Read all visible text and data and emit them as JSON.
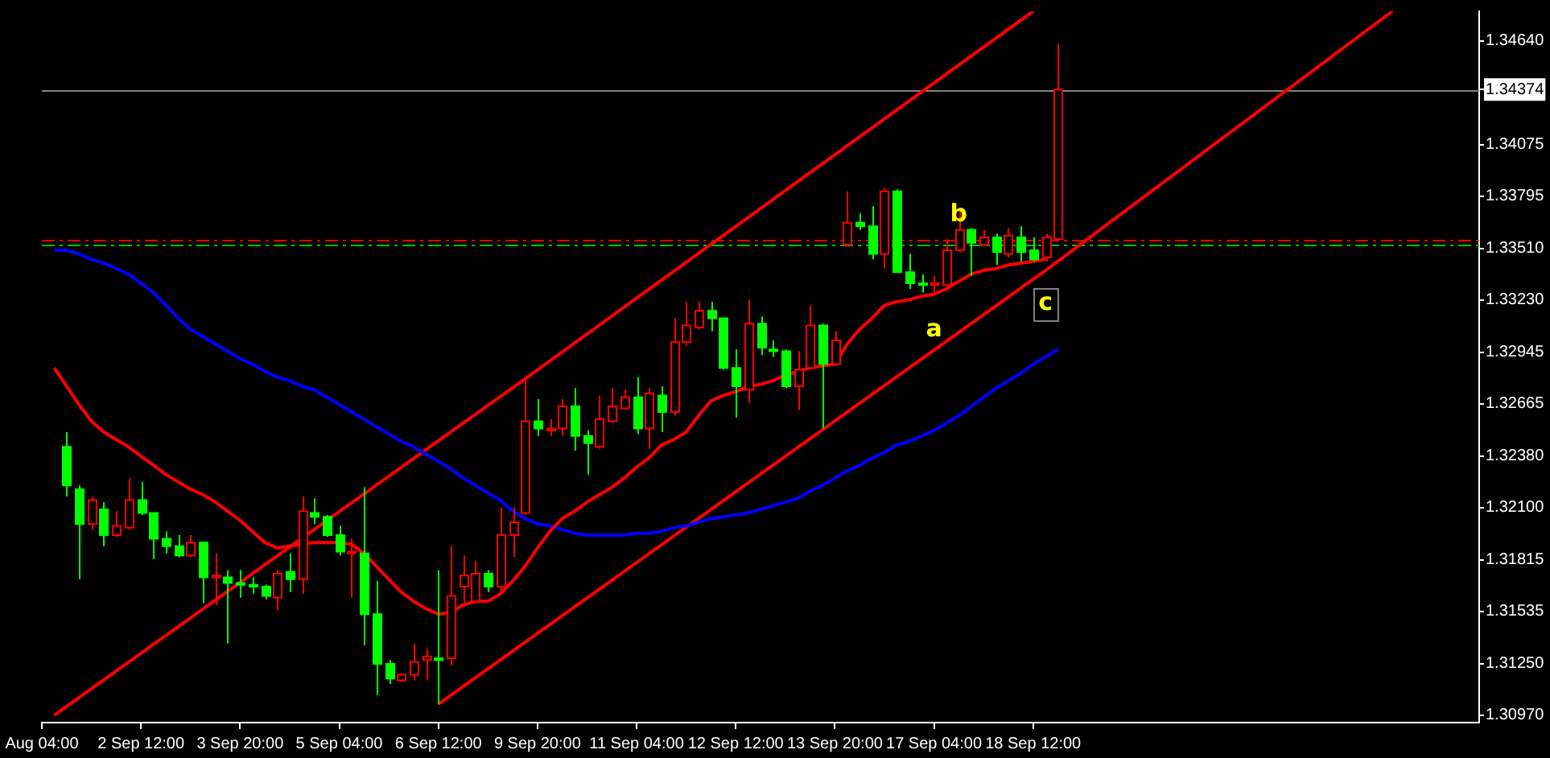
{
  "chart_data": {
    "type": "candlestick",
    "categories": [
      "Aug 04:00",
      null,
      null,
      null,
      null,
      null,
      null,
      null,
      "2 Sep 12:00",
      null,
      null,
      null,
      null,
      null,
      null,
      null,
      "3 Sep 20:00",
      null,
      null,
      null,
      null,
      null,
      null,
      null,
      "5 Sep 04:00",
      null,
      null,
      null,
      null,
      null,
      null,
      null,
      "6 Sep 12:00",
      null,
      null,
      null,
      null,
      null,
      null,
      null,
      "9 Sep 20:00",
      null,
      null,
      null,
      null,
      null,
      null,
      null,
      "11 Sep 04:00",
      null,
      null,
      null,
      null,
      null,
      null,
      null,
      "12 Sep 12:00",
      null,
      null,
      null,
      null,
      null,
      null,
      null,
      "13 Sep 20:00",
      null,
      null,
      null,
      null,
      null,
      null,
      null,
      "17 Sep 04:00",
      null,
      null,
      null,
      null,
      null,
      null,
      null,
      "18 Sep 12:00",
      null,
      null,
      null,
      null,
      null,
      null,
      null,
      null,
      null,
      null,
      null,
      null,
      null,
      null,
      null,
      null,
      null,
      null,
      null,
      null,
      null,
      null,
      null,
      null,
      null,
      null,
      null,
      null,
      null,
      null,
      null,
      null,
      null,
      null,
      null,
      null
    ],
    "ohlc": [
      null,
      null,
      [
        1.3243,
        1.3251,
        1.3216,
        1.3222
      ],
      [
        1.322,
        1.3222,
        1.3171,
        1.3201
      ],
      [
        1.3201,
        1.3216,
        1.3198,
        1.3214
      ],
      [
        1.3209,
        1.3213,
        1.3189,
        1.3195
      ],
      [
        1.3195,
        1.3208,
        1.3194,
        1.32
      ],
      [
        1.3199,
        1.3226,
        1.3198,
        1.3214
      ],
      [
        1.3214,
        1.3224,
        1.3206,
        1.3207
      ],
      [
        1.3207,
        1.3207,
        1.3182,
        1.3193
      ],
      [
        1.3193,
        1.3197,
        1.3185,
        1.3189
      ],
      [
        1.3189,
        1.3195,
        1.3183,
        1.3184
      ],
      [
        1.3184,
        1.3195,
        1.3183,
        1.3191
      ],
      [
        1.3191,
        1.3191,
        1.3158,
        1.3172
      ],
      [
        1.3172,
        1.3185,
        1.3157,
        1.3173
      ],
      [
        1.3172,
        1.3176,
        1.3136,
        1.3169
      ],
      [
        1.3169,
        1.3176,
        1.3161,
        1.3168
      ],
      [
        1.3168,
        1.3172,
        1.3163,
        1.3167
      ],
      [
        1.3167,
        1.3168,
        1.316,
        1.3162
      ],
      [
        1.3161,
        1.3176,
        1.3154,
        1.3174
      ],
      [
        1.3175,
        1.3185,
        1.3164,
        1.3171
      ],
      [
        1.3171,
        1.3216,
        1.3163,
        1.3208
      ],
      [
        1.3207,
        1.3215,
        1.3201,
        1.3205
      ],
      [
        1.3205,
        1.3206,
        1.3194,
        1.3195
      ],
      [
        1.3195,
        1.32,
        1.3184,
        1.3186
      ],
      [
        1.3185,
        1.3193,
        1.3161,
        1.3186
      ],
      [
        1.3185,
        1.3221,
        1.3135,
        1.3152
      ],
      [
        1.3152,
        1.317,
        1.3108,
        1.3125
      ],
      [
        1.3125,
        1.3127,
        1.3114,
        1.3117
      ],
      [
        1.3116,
        1.312,
        1.3115,
        1.3119
      ],
      [
        1.3119,
        1.3136,
        1.3116,
        1.3126
      ],
      [
        1.3127,
        1.3133,
        1.3116,
        1.3129
      ],
      [
        1.3128,
        1.3176,
        1.3103,
        1.3127
      ],
      [
        1.3128,
        1.3189,
        1.3124,
        1.3162
      ],
      [
        1.3167,
        1.3184,
        1.3158,
        1.3173
      ],
      [
        1.3159,
        1.3181,
        1.3158,
        1.3174
      ],
      [
        1.3174,
        1.3176,
        1.3164,
        1.3167
      ],
      [
        1.3167,
        1.321,
        1.3164,
        1.3195
      ],
      [
        1.3195,
        1.321,
        1.3183,
        1.3202
      ],
      [
        1.3207,
        1.328,
        1.3206,
        1.3257
      ],
      [
        1.3257,
        1.3269,
        1.3249,
        1.3253
      ],
      [
        1.3252,
        1.3258,
        1.3249,
        1.3253
      ],
      [
        1.3253,
        1.3269,
        1.3249,
        1.3265
      ],
      [
        1.3265,
        1.3275,
        1.3241,
        1.3249
      ],
      [
        1.3249,
        1.3252,
        1.3228,
        1.3245
      ],
      [
        1.3243,
        1.3271,
        1.3242,
        1.3258
      ],
      [
        1.3257,
        1.3275,
        1.3256,
        1.3265
      ],
      [
        1.3264,
        1.3274,
        1.3263,
        1.327
      ],
      [
        1.327,
        1.3281,
        1.325,
        1.3253
      ],
      [
        1.3253,
        1.3275,
        1.3242,
        1.3272
      ],
      [
        1.3271,
        1.3276,
        1.3251,
        1.3262
      ],
      [
        1.3262,
        1.3313,
        1.326,
        1.33
      ],
      [
        1.33,
        1.3322,
        1.3298,
        1.3309
      ],
      [
        1.3308,
        1.3322,
        1.3307,
        1.3317
      ],
      [
        1.3317,
        1.3322,
        1.3306,
        1.3313
      ],
      [
        1.3313,
        1.3313,
        1.3285,
        1.3286
      ],
      [
        1.3286,
        1.3296,
        1.3259,
        1.3276
      ],
      [
        1.3274,
        1.3323,
        1.3267,
        1.331
      ],
      [
        1.331,
        1.3314,
        1.3293,
        1.3297
      ],
      [
        1.3296,
        1.3301,
        1.3292,
        1.3295
      ],
      [
        1.3295,
        1.3296,
        1.3275,
        1.3276
      ],
      [
        1.3276,
        1.3295,
        1.3263,
        1.3285
      ],
      [
        1.3286,
        1.332,
        1.3285,
        1.3309
      ],
      [
        1.3309,
        1.331,
        1.3253,
        1.3288
      ],
      [
        1.3288,
        1.3306,
        1.3287,
        1.3301
      ],
      [
        1.3353,
        1.3382,
        1.3352,
        1.3365
      ],
      [
        1.3365,
        1.337,
        1.3361,
        1.3363
      ],
      [
        1.3363,
        1.3374,
        1.3345,
        1.3348
      ],
      [
        1.3348,
        1.3384,
        1.334,
        1.3382
      ],
      [
        1.3382,
        1.3383,
        1.3338,
        1.3338
      ],
      [
        1.3338,
        1.3348,
        1.3329,
        1.3332
      ],
      [
        1.3332,
        1.3337,
        1.3327,
        1.3331
      ],
      [
        1.3331,
        1.3336,
        1.3327,
        1.3332
      ],
      [
        1.3331,
        1.3356,
        1.3331,
        1.335
      ],
      [
        1.335,
        1.3372,
        1.3349,
        1.3361
      ],
      [
        1.3361,
        1.3362,
        1.3336,
        1.3354
      ],
      [
        1.3353,
        1.3361,
        1.3352,
        1.3357
      ],
      [
        1.3357,
        1.3359,
        1.3342,
        1.3349
      ],
      [
        1.3348,
        1.3362,
        1.3346,
        1.3358
      ],
      [
        1.3357,
        1.3363,
        1.3344,
        1.3349
      ],
      [
        1.335,
        1.3357,
        1.3344,
        1.3345
      ],
      [
        1.3346,
        1.3359,
        1.3344,
        1.3357
      ],
      [
        1.3356,
        1.3462,
        1.3356,
        1.34374
      ],
      null,
      null,
      null,
      null,
      null,
      null,
      null,
      null,
      null,
      null,
      null,
      null,
      null,
      null,
      null,
      null,
      null,
      null,
      null,
      null,
      null,
      null,
      null,
      null,
      null,
      null,
      null,
      null,
      null,
      null,
      null,
      null,
      null,
      null
    ],
    "colors": [
      null,
      null,
      "#00ff00",
      "#00ff00",
      "#ff0000",
      "#00ff00",
      "#ff0000",
      "#ff0000",
      "#00ff00",
      "#00ff00",
      "#00ff00",
      "#00ff00",
      "#ff0000",
      "#00ff00",
      "#ff0000",
      "#00ff00",
      "#00ff00",
      "#00ff00",
      "#00ff00",
      "#ff0000",
      "#00ff00",
      "#ff0000",
      "#00ff00",
      "#00ff00",
      "#00ff00",
      "#ff0000",
      "#00ff00",
      "#00ff00",
      "#00ff00",
      "#ff0000",
      "#ff0000",
      "#ff0000",
      "#00ff00",
      "#ff0000",
      "#ff0000",
      "#ff0000",
      "#00ff00",
      "#ff0000",
      "#ff0000",
      "#ff0000",
      "#00ff00",
      "#ff0000",
      "#ff0000",
      "#00ff00",
      "#00ff00",
      "#ff0000",
      "#ff0000",
      "#ff0000",
      "#00ff00",
      "#ff0000",
      "#00ff00",
      "#ff0000",
      "#ff0000",
      "#ff0000",
      "#00ff00",
      "#00ff00",
      "#00ff00",
      "#ff0000",
      "#00ff00",
      "#00ff00",
      "#00ff00",
      "#ff0000",
      "#ff0000",
      "#00ff00",
      "#ff0000",
      "#ff0000",
      "#00ff00",
      "#00ff00",
      "#ff0000",
      "#00ff00",
      "#00ff00",
      "#00ff00",
      "#ff0000",
      "#ff0000",
      "#ff0000",
      "#00ff00",
      "#ff0000",
      "#00ff00",
      "#ff0000",
      "#00ff00",
      "#00ff00",
      "#ff0000",
      "#ff0000",
      null,
      null,
      null,
      null,
      null,
      null,
      null,
      null,
      null,
      null,
      null,
      null,
      null,
      null,
      null,
      null,
      null,
      null,
      null,
      null,
      null,
      null,
      null,
      null,
      null,
      null,
      null,
      null,
      null,
      null,
      null,
      null,
      null,
      null
    ],
    "series": [
      {
        "type": "line",
        "color": "#ff0000",
        "values": [
          null,
          1.3286,
          1.3276,
          1.3266,
          1.3257,
          1.3251,
          1.3247,
          1.3243,
          1.3238,
          1.3233,
          1.3228,
          1.3224,
          1.322,
          1.3217,
          1.3213,
          1.3208,
          1.3203,
          1.3197,
          1.3191,
          1.3188,
          1.3189,
          1.319,
          1.3191,
          1.3191,
          1.3191,
          1.319,
          1.3185,
          1.3178,
          1.3171,
          1.3164,
          1.3159,
          1.3155,
          1.3152,
          1.3153,
          1.3157,
          1.3159,
          1.3159,
          1.3163,
          1.317,
          1.3178,
          1.3188,
          1.3197,
          1.3204,
          1.3208,
          1.3213,
          1.3217,
          1.3221,
          1.3226,
          1.3232,
          1.3237,
          1.3244,
          1.3247,
          1.3251,
          1.326,
          1.3268,
          1.3271,
          1.3273,
          1.3276,
          1.3277,
          1.3279,
          1.3282,
          1.3284,
          1.3286,
          1.3287,
          1.3288,
          1.3299,
          1.3307,
          1.3313,
          1.332,
          1.3322,
          1.3323,
          1.3325,
          1.3326,
          1.3329,
          1.3333,
          1.3337,
          1.3339,
          1.334,
          1.3342,
          1.3343,
          1.3344,
          1.3345,
          null,
          null,
          null,
          null,
          null,
          null,
          null,
          null,
          null,
          null,
          null,
          null,
          null,
          null,
          null,
          null,
          null,
          null,
          null,
          null,
          null,
          null,
          null,
          null,
          null,
          null,
          null,
          null,
          null,
          null,
          null,
          null,
          null,
          null,
          null
        ]
      },
      {
        "type": "line",
        "color": "#0000ff",
        "values": [
          null,
          1.335,
          1.335,
          1.3348,
          1.3345,
          1.3343,
          1.334,
          1.3337,
          1.3332,
          1.3327,
          1.332,
          1.3313,
          1.3307,
          1.3303,
          1.3299,
          1.3295,
          1.3291,
          1.3288,
          1.3284,
          1.3281,
          1.3279,
          1.3276,
          1.3274,
          1.327,
          1.3266,
          1.3262,
          1.3258,
          1.3254,
          1.325,
          1.3246,
          1.3243,
          1.3239,
          1.3235,
          1.3231,
          1.3226,
          1.3222,
          1.3218,
          1.3214,
          1.3208,
          1.3204,
          1.3201,
          1.32,
          1.3198,
          1.3196,
          1.3195,
          1.3195,
          1.3195,
          1.3195,
          1.3196,
          1.3196,
          1.3197,
          1.3199,
          1.32,
          1.3202,
          1.3204,
          1.3205,
          1.3206,
          1.3207,
          1.3209,
          1.3211,
          1.3213,
          1.3215,
          1.3219,
          1.3222,
          1.3226,
          1.323,
          1.3233,
          1.3237,
          1.324,
          1.3244,
          1.3246,
          1.3249,
          1.3252,
          1.3256,
          1.326,
          1.3265,
          1.327,
          1.3275,
          1.3279,
          1.3283,
          1.3288,
          1.3292,
          1.3296,
          null,
          null,
          null,
          null,
          null,
          null,
          null,
          null,
          null,
          null,
          null,
          null,
          null,
          null,
          null,
          null,
          null,
          null,
          null,
          null,
          null,
          null,
          null,
          null,
          null,
          null,
          null,
          null,
          null,
          null,
          null,
          null,
          null,
          null
        ]
      },
      {
        "type": "line",
        "color": "#ff0000",
        "values": [
          null,
          1.3097,
          null,
          null,
          null,
          null,
          null,
          null,
          null,
          null,
          null,
          null,
          null,
          null,
          null,
          null,
          null,
          null,
          null,
          null,
          null,
          null,
          null,
          null,
          null,
          null,
          null,
          null,
          null,
          null,
          null,
          null,
          null,
          null,
          null,
          null,
          null,
          null,
          null,
          1.328,
          null,
          null,
          null,
          null,
          null,
          null,
          null,
          null,
          null,
          null,
          null,
          null,
          null,
          null,
          null,
          null,
          null,
          null,
          null,
          null,
          null,
          null,
          null,
          null,
          null,
          null,
          null,
          null,
          null,
          null,
          null,
          null,
          null,
          null,
          null,
          null,
          null,
          null,
          null,
          null,
          1.348,
          null,
          null,
          null,
          null,
          null,
          null,
          null,
          null,
          null,
          null,
          null,
          null,
          null,
          null,
          null,
          null,
          null,
          null,
          null,
          null,
          null,
          null,
          null,
          null,
          null,
          null,
          null,
          null,
          null,
          null,
          null,
          null,
          null,
          null,
          null,
          null
        ]
      },
      {
        "type": "line",
        "color": "#ff0000",
        "values": [
          null,
          null,
          null,
          null,
          null,
          null,
          null,
          null,
          null,
          null,
          null,
          null,
          null,
          null,
          null,
          null,
          null,
          null,
          null,
          null,
          null,
          null,
          null,
          null,
          null,
          null,
          null,
          null,
          null,
          null,
          null,
          null,
          1.3103,
          null,
          null,
          null,
          null,
          null,
          null,
          null,
          null,
          null,
          null,
          null,
          null,
          null,
          null,
          null,
          null,
          null,
          null,
          null,
          null,
          null,
          null,
          null,
          null,
          null,
          null,
          null,
          null,
          null,
          null,
          null,
          null,
          null,
          null,
          null,
          null,
          null,
          null,
          null,
          null,
          null,
          null,
          null,
          null,
          null,
          null,
          null,
          null,
          1.3339,
          null,
          null,
          null,
          null,
          null,
          null,
          null,
          null,
          null,
          null,
          null,
          null,
          null,
          null,
          null,
          null,
          null,
          null,
          null,
          null,
          null,
          null,
          null,
          null,
          null,
          null,
          null,
          1.348,
          null,
          null,
          null,
          null,
          null,
          null,
          null
        ]
      }
    ],
    "ylim": [
      1.3093,
      1.348
    ],
    "yticks": [
      {
        "value": 1.3097,
        "label": "1.30970"
      },
      {
        "value": 1.3125,
        "label": "1.31250"
      },
      {
        "value": 1.31535,
        "label": "1.31535"
      },
      {
        "value": 1.31815,
        "label": "1.31815"
      },
      {
        "value": 1.321,
        "label": "1.32100"
      },
      {
        "value": 1.3238,
        "label": "1.32380"
      },
      {
        "value": 1.32665,
        "label": "1.32665"
      },
      {
        "value": 1.32945,
        "label": "1.32945"
      },
      {
        "value": 1.3323,
        "label": "1.33230"
      },
      {
        "value": 1.3351,
        "label": "1.33510"
      },
      {
        "value": 1.33795,
        "label": "1.33795"
      },
      {
        "value": 1.34075,
        "label": "1.34075"
      },
      {
        "value": 1.34374,
        "label": "1.34374"
      },
      {
        "value": 1.3464,
        "label": "1.34640"
      }
    ],
    "ref_lines": [
      {
        "axis": "y",
        "value": 1.3356,
        "color": "#ff0000",
        "line_style": "dashed"
      },
      {
        "axis": "y",
        "value": 1.3353,
        "color": "#00c000",
        "line_style": "dashed"
      },
      {
        "axis": "y",
        "value": 1.34374,
        "color": "#808080"
      }
    ],
    "annotations": [
      "a",
      {
        "text": "b",
        "y": 1.3369
      },
      {
        "text": "c",
        "y": 1.3321
      }
    ],
    "grid": false,
    "legend": false
  }
}
